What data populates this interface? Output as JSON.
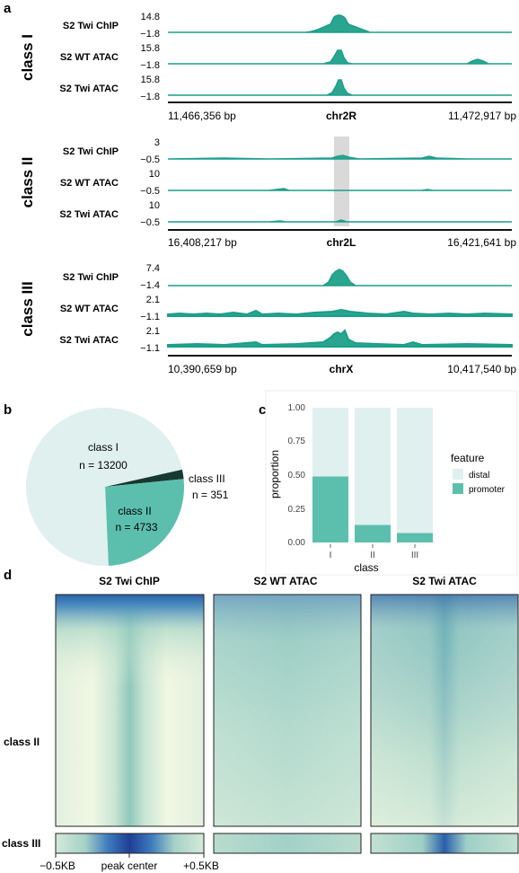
{
  "panel_a": {
    "letter": "a",
    "groups": [
      {
        "class_label": "class I",
        "tracks": [
          {
            "label": "S2 Twi ChIP",
            "ymax": "14.8",
            "ymin": "−1.8"
          },
          {
            "label": "S2 WT ATAC",
            "ymax": "15.8",
            "ymin": "−1.8"
          },
          {
            "label": "S2 Twi ATAC",
            "ymax": "15.8",
            "ymin": "−1.8"
          }
        ],
        "start": "11,466,356 bp",
        "chrom": "chr2R",
        "end": "11,472,917 bp"
      },
      {
        "class_label": "class II",
        "tracks": [
          {
            "label": "S2 Twi ChIP",
            "ymax": "3",
            "ymin": "−0.5"
          },
          {
            "label": "S2 WT ATAC",
            "ymax": "10",
            "ymin": "−0.5"
          },
          {
            "label": "S2 Twi ATAC",
            "ymax": "10",
            "ymin": "−0.5"
          }
        ],
        "start": "16,408,217 bp",
        "chrom": "chr2L",
        "end": "16,421,641 bp"
      },
      {
        "class_label": "class III",
        "tracks": [
          {
            "label": "S2 Twi ChIP",
            "ymax": "7.4",
            "ymin": "−1.4"
          },
          {
            "label": "S2 WT ATAC",
            "ymax": "2.1",
            "ymin": "−1.1"
          },
          {
            "label": "S2 Twi ATAC",
            "ymax": "2.1",
            "ymin": "−1.1"
          }
        ],
        "start": "10,390,659 bp",
        "chrom": "chrX",
        "end": "10,417,540 bp"
      }
    ]
  },
  "panel_b": {
    "letter": "b",
    "slices": [
      {
        "label": "class I",
        "n_label": "n = 13200",
        "value": 13200,
        "color": "#dff0ef"
      },
      {
        "label": "class II",
        "n_label": "n = 4733",
        "value": 4733,
        "color": "#5cbfae"
      },
      {
        "label": "class III",
        "n_label": "n = 351",
        "value": 351,
        "color": "#173a30"
      }
    ]
  },
  "panel_c": {
    "letter": "c",
    "ylabel": "proportion",
    "xlabel": "class",
    "y_ticks": [
      "0.00",
      "0.25",
      "0.50",
      "0.75",
      "1.00"
    ],
    "legend_title": "feature",
    "legend": [
      {
        "label": "distal",
        "color": "#dff0ef"
      },
      {
        "label": "promoter",
        "color": "#5cbfae"
      }
    ]
  },
  "panel_d": {
    "letter": "d",
    "titles": [
      "S2 Twi ChIP",
      "S2 WT ATAC",
      "S2 Twi ATAC"
    ],
    "row_labels": [
      "class II",
      "class III"
    ],
    "x_ticks": [
      "−0.5KB",
      "peak center",
      "+0.5KB"
    ]
  },
  "colors": {
    "track": "#1a9e8a",
    "track_fill": "#2aa690",
    "highlight": "#d9d9d9",
    "heat_low": "#f3f8e4",
    "heat_mid": "#7fc1b3",
    "heat_high": "#1f4f9e"
  },
  "chart_data": {
    "type": "bar",
    "categories": [
      "I",
      "II",
      "III"
    ],
    "series": [
      {
        "name": "promoter",
        "values": [
          0.49,
          0.13,
          0.07
        ]
      },
      {
        "name": "distal",
        "values": [
          0.51,
          0.87,
          0.93
        ]
      }
    ],
    "xlabel": "class",
    "ylabel": "proportion",
    "ylim": [
      0,
      1
    ],
    "stacked": true,
    "legend": "right"
  }
}
